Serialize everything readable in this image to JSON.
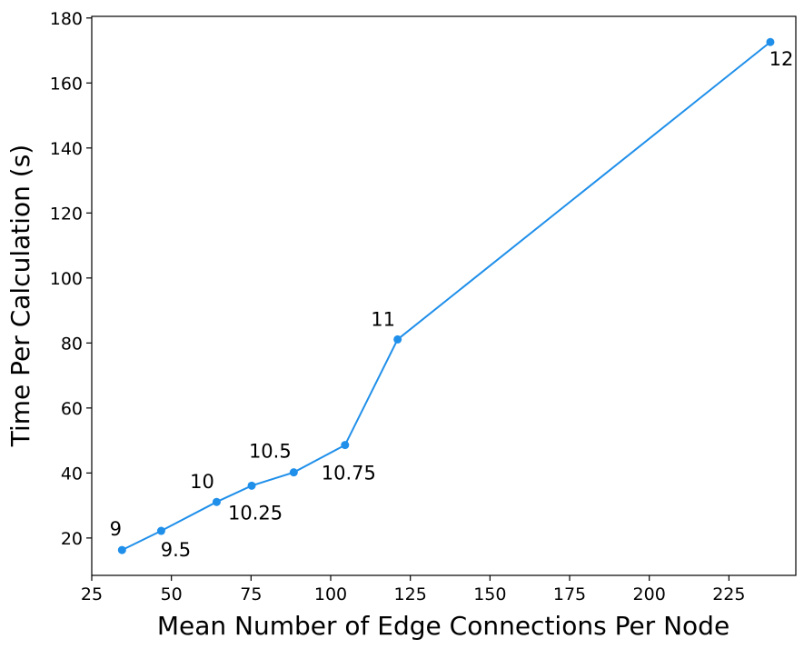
{
  "chart_data": {
    "type": "line",
    "title": "",
    "xlabel": "Mean Number of Edge Connections Per Node",
    "ylabel": "Time Per Calculation (s)",
    "xlim": [
      25,
      246
    ],
    "ylim": [
      8.5,
      180.5
    ],
    "xticks": [
      25,
      50,
      75,
      100,
      125,
      150,
      175,
      200,
      225
    ],
    "yticks": [
      20,
      40,
      60,
      80,
      100,
      120,
      140,
      160,
      180
    ],
    "grid": false,
    "legend": false,
    "line_color": "#1f8fea",
    "series": [
      {
        "x": [
          34.5,
          46.8,
          64.2,
          75.2,
          88.4,
          104.5,
          121.0,
          238.0
        ],
        "y": [
          16.3,
          22.2,
          31.1,
          36.1,
          40.2,
          48.6,
          81.1,
          172.6
        ],
        "point_labels": [
          "9",
          "9.5",
          "10",
          "10.25",
          "10.5",
          "10.75",
          "11",
          "12"
        ]
      }
    ]
  }
}
